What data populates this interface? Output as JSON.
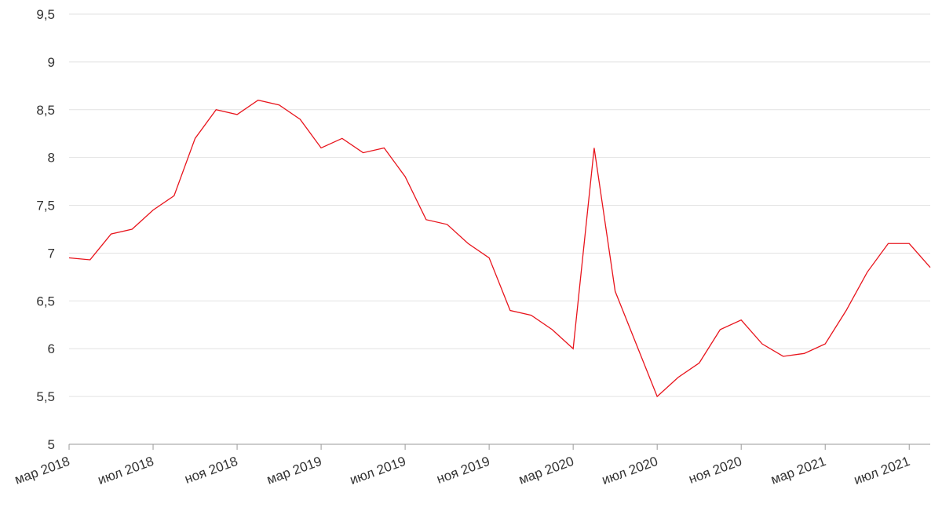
{
  "chart_data": {
    "type": "line",
    "x": [
      "2018-03",
      "2018-04",
      "2018-05",
      "2018-06",
      "2018-07",
      "2018-08",
      "2018-09",
      "2018-10",
      "2018-11",
      "2018-12",
      "2019-01",
      "2019-02",
      "2019-03",
      "2019-04",
      "2019-05",
      "2019-06",
      "2019-07",
      "2019-08",
      "2019-09",
      "2019-10",
      "2019-11",
      "2019-12",
      "2020-01",
      "2020-02",
      "2020-03",
      "2020-04",
      "2020-05",
      "2020-06",
      "2020-07",
      "2020-08",
      "2020-09",
      "2020-10",
      "2020-11",
      "2020-12",
      "2021-01",
      "2021-02",
      "2021-03",
      "2021-04",
      "2021-05",
      "2021-06",
      "2021-07",
      "2021-08"
    ],
    "series": [
      {
        "color": "#e8141c",
        "values": [
          6.95,
          6.93,
          7.2,
          7.25,
          7.45,
          7.6,
          8.2,
          8.5,
          8.45,
          8.6,
          8.55,
          8.4,
          8.1,
          8.2,
          8.05,
          8.1,
          7.8,
          7.35,
          7.3,
          7.1,
          6.95,
          6.4,
          6.35,
          6.2,
          6.0,
          8.1,
          6.6,
          6.05,
          5.5,
          5.7,
          5.85,
          6.2,
          6.3,
          6.05,
          5.92,
          5.95,
          6.05,
          6.4,
          6.8,
          7.1,
          7.1,
          6.85
        ]
      }
    ],
    "xlim": [
      "2018-03",
      "2021-08"
    ],
    "xticks": [
      {
        "value": "2018-03",
        "label": "мар 2018"
      },
      {
        "value": "2018-07",
        "label": "июл 2018"
      },
      {
        "value": "2018-11",
        "label": "ноя 2018"
      },
      {
        "value": "2019-03",
        "label": "мар 2019"
      },
      {
        "value": "2019-07",
        "label": "июл 2019"
      },
      {
        "value": "2019-11",
        "label": "ноя 2019"
      },
      {
        "value": "2020-03",
        "label": "мар 2020"
      },
      {
        "value": "2020-07",
        "label": "июл 2020"
      },
      {
        "value": "2020-11",
        "label": "ноя 2020"
      },
      {
        "value": "2021-03",
        "label": "мар 2021"
      },
      {
        "value": "2021-07",
        "label": "июл 2021"
      }
    ],
    "ylim": [
      5,
      9.5
    ],
    "yticks": [
      5,
      {
        "value": 5.5,
        "label": "5,5"
      },
      6,
      {
        "value": 6.5,
        "label": "6,5"
      },
      7,
      {
        "value": 7.5,
        "label": "7,5"
      },
      8,
      {
        "value": 8.5,
        "label": "8,5"
      },
      9,
      {
        "value": 9.5,
        "label": "9,5"
      }
    ],
    "grid": true
  }
}
